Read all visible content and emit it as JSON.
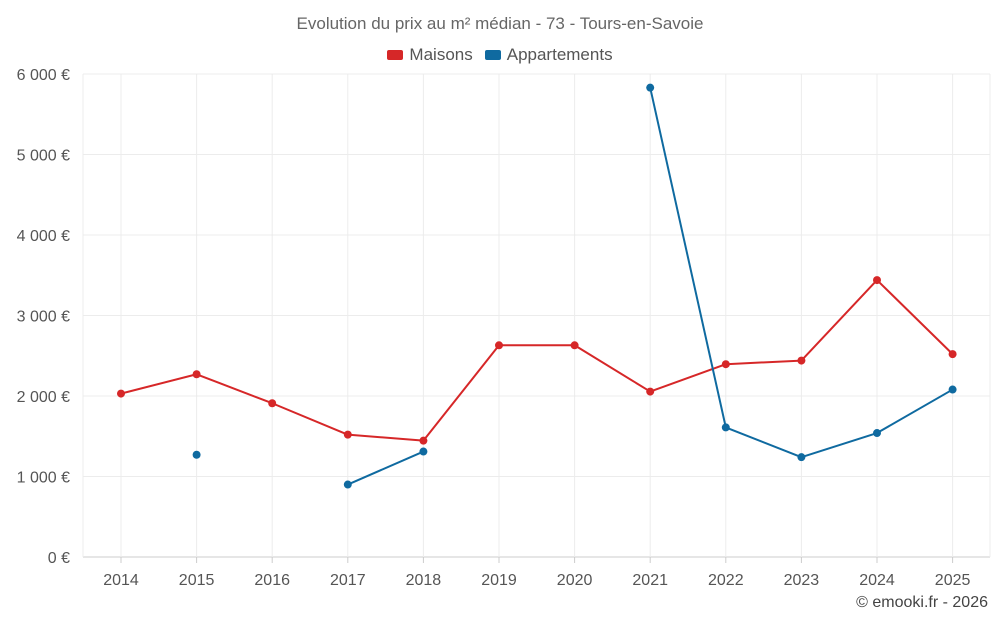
{
  "chart_data": {
    "type": "line",
    "title": "Evolution du prix au m² médian - 73 - Tours-en-Savoie",
    "categories": [
      "2014",
      "2015",
      "2016",
      "2017",
      "2018",
      "2019",
      "2020",
      "2021",
      "2022",
      "2023",
      "2024",
      "2025"
    ],
    "ylim": [
      0,
      6000
    ],
    "yticks": [
      {
        "value": 0,
        "label": "0 €"
      },
      {
        "value": 1000,
        "label": "1 000 €"
      },
      {
        "value": 2000,
        "label": "2 000 €"
      },
      {
        "value": 3000,
        "label": "3 000 €"
      },
      {
        "value": 4000,
        "label": "4 000 €"
      },
      {
        "value": 5000,
        "label": "5 000 €"
      },
      {
        "value": 6000,
        "label": "6 000 €"
      }
    ],
    "grid": true,
    "legend_position": "top-center",
    "series": [
      {
        "name": "Maisons",
        "color": "#d62728",
        "values": [
          2030,
          2270,
          1910,
          1520,
          1445,
          2630,
          2630,
          2055,
          2395,
          2440,
          3440,
          2520
        ]
      },
      {
        "name": "Appartements",
        "color": "#0f6aa0",
        "values": [
          null,
          1270,
          null,
          900,
          1310,
          null,
          null,
          5830,
          1610,
          1240,
          1540,
          2080
        ]
      }
    ]
  },
  "footer": {
    "copyright": "© emooki.fr - 2026"
  }
}
